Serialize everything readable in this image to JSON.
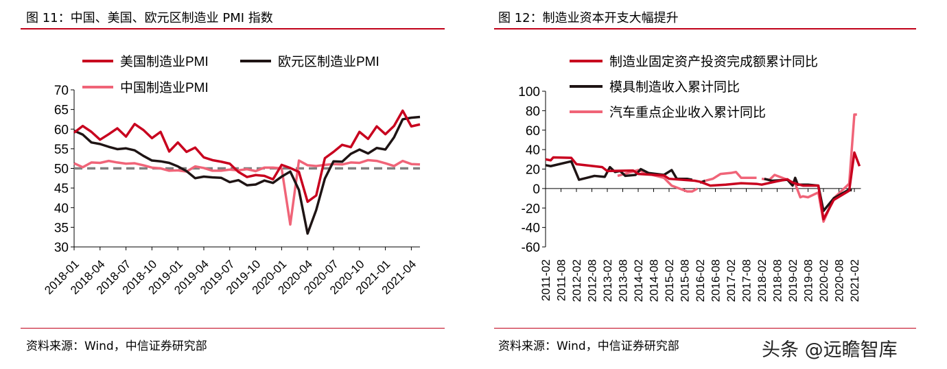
{
  "left": {
    "title": "图 11：中国、美国、欧元区制造业 PMI 指数",
    "source": "资料来源：Wind，中信证券研究部"
  },
  "right": {
    "title": "图 12：制造业资本开支大幅提升",
    "source": "资料来源：Wind，中信证券研究部"
  },
  "watermark": "头条 @远瞻智库",
  "chart_data": [
    {
      "type": "line",
      "ylim": [
        30,
        70
      ],
      "yticks": [
        30,
        35,
        40,
        45,
        50,
        55,
        60,
        65,
        70
      ],
      "x_start": "2018-01",
      "xticks": [
        "2018-01",
        "2018-04",
        "2018-07",
        "2018-10",
        "2019-01",
        "2019-04",
        "2019-07",
        "2019-10",
        "2020-01",
        "2020-04",
        "2020-07",
        "2020-10",
        "2021-01",
        "2021-04"
      ],
      "reference_line": {
        "y": 50,
        "style": "dashed",
        "color": "#808080"
      },
      "legend_placement": "top",
      "series": [
        {
          "name": "美国制造业PMI",
          "color": "#c8001e",
          "values": [
            59.1,
            60.8,
            59.3,
            57.3,
            58.7,
            60.2,
            58.1,
            61.3,
            59.8,
            57.7,
            59.3,
            54.3,
            56.6,
            54.2,
            55.3,
            52.8,
            52.1,
            51.7,
            51.2,
            49.1,
            47.8,
            48.3,
            48.1,
            47.2,
            50.9,
            50.1,
            49.1,
            41.5,
            43.1,
            52.6,
            54.2,
            56.0,
            55.4,
            59.3,
            57.5,
            60.7,
            58.7,
            60.8,
            64.7,
            60.7,
            61.2
          ]
        },
        {
          "name": "欧元区制造业PMI",
          "color": "#1e1414",
          "values": [
            59.6,
            58.6,
            56.6,
            56.2,
            55.5,
            54.9,
            55.1,
            54.6,
            53.2,
            52.0,
            51.8,
            51.4,
            50.5,
            49.3,
            47.5,
            47.9,
            47.7,
            47.6,
            46.5,
            47.0,
            45.7,
            45.9,
            46.9,
            46.3,
            47.9,
            49.2,
            44.5,
            33.4,
            39.4,
            47.4,
            51.8,
            51.7,
            53.7,
            54.8,
            53.8,
            55.2,
            54.8,
            57.9,
            62.5,
            62.9,
            63.1
          ]
        },
        {
          "name": "中国制造业PMI",
          "color": "#f06478",
          "values": [
            51.3,
            50.3,
            51.5,
            51.4,
            51.9,
            51.5,
            51.2,
            51.3,
            50.8,
            50.2,
            50.0,
            49.4,
            49.5,
            49.2,
            50.5,
            50.1,
            49.4,
            49.4,
            49.7,
            49.5,
            49.8,
            49.3,
            50.2,
            50.2,
            50.0,
            35.7,
            52.0,
            50.8,
            50.6,
            50.9,
            51.1,
            51.0,
            51.5,
            51.4,
            52.1,
            51.9,
            51.3,
            50.6,
            51.9,
            51.1,
            51.0
          ]
        }
      ]
    },
    {
      "type": "line",
      "ylim": [
        -60,
        100
      ],
      "yticks": [
        -60,
        -40,
        -20,
        0,
        20,
        40,
        60,
        80,
        100
      ],
      "xticks": [
        "2011-02",
        "2011-08",
        "2012-02",
        "2012-08",
        "2013-02",
        "2013-08",
        "2014-02",
        "2014-08",
        "2015-02",
        "2015-08",
        "2016-02",
        "2016-08",
        "2017-02",
        "2017-08",
        "2018-02",
        "2018-08",
        "2019-02",
        "2019-08",
        "2020-02",
        "2020-08",
        "2021-02"
      ],
      "legend_placement": "top-left",
      "series": [
        {
          "name": "制造业固定资产投资完成额累计同比",
          "color": "#c8001e",
          "points": [
            [
              "2011-02",
              30
            ],
            [
              "2011-04",
              29
            ],
            [
              "2011-05",
              32
            ],
            [
              "2011-12",
              31.5
            ],
            [
              "2012-02",
              25
            ],
            [
              "2012-12",
              22
            ],
            [
              "2013-02",
              18
            ],
            [
              "2013-12",
              18.5
            ],
            [
              "2014-02",
              15
            ],
            [
              "2014-12",
              13.5
            ],
            [
              "2015-02",
              10
            ],
            [
              "2015-12",
              8
            ],
            [
              "2016-02",
              7
            ],
            [
              "2016-06",
              3
            ],
            [
              "2016-12",
              4
            ],
            [
              "2017-06",
              5.5
            ],
            [
              "2017-12",
              4.8
            ],
            [
              "2018-02",
              4
            ],
            [
              "2018-08",
              7.5
            ],
            [
              "2018-12",
              9.5
            ],
            [
              "2019-02",
              6
            ],
            [
              "2019-06",
              3
            ],
            [
              "2019-12",
              3
            ],
            [
              "2020-02",
              -31.5
            ],
            [
              "2020-06",
              -11.7
            ],
            [
              "2020-12",
              -2.2
            ],
            [
              "2021-02",
              37
            ],
            [
              "2021-04",
              23
            ]
          ]
        },
        {
          "name": "模具制造收入累计同比",
          "color": "#1e1414",
          "points": [
            [
              "2011-02",
              24
            ],
            [
              "2011-04",
              23
            ],
            [
              "2011-12",
              28
            ],
            [
              "2012-03",
              9
            ],
            [
              "2012-06",
              11
            ],
            [
              "2012-09",
              13
            ],
            [
              "2013-01",
              12
            ],
            [
              "2013-03",
              22
            ],
            [
              "2013-05",
              17
            ],
            [
              "2013-07",
              18
            ],
            [
              "2013-09",
              13
            ],
            [
              "2014-01",
              14
            ],
            [
              "2014-03",
              20
            ],
            [
              "2014-06",
              16
            ],
            [
              "2014-12",
              14
            ],
            [
              "2015-03",
              19
            ],
            [
              "2015-05",
              10
            ],
            [
              "2015-09",
              10
            ],
            [
              "2015-11",
              9
            ],
            null,
            [
              "2016-02",
              6
            ],
            [
              "2016-04",
              8
            ],
            null,
            [
              "2018-03",
              10
            ],
            [
              "2018-06",
              8
            ],
            [
              "2018-12",
              9
            ],
            [
              "2019-02",
              3
            ],
            [
              "2019-03",
              11
            ],
            [
              "2019-04",
              4
            ],
            [
              "2019-08",
              4
            ],
            [
              "2019-12",
              3
            ],
            [
              "2020-02",
              -23
            ],
            [
              "2020-06",
              -10
            ],
            [
              "2020-12",
              -1
            ],
            [
              "2021-01",
              -2
            ]
          ]
        },
        {
          "name": "汽车重点企业收入累计同比",
          "color": "#f06478",
          "points": [
            [
              "2013-06",
              13
            ],
            [
              "2013-10",
              16
            ],
            [
              "2014-02",
              19
            ],
            [
              "2014-06",
              15
            ],
            [
              "2014-12",
              11
            ],
            [
              "2015-03",
              3
            ],
            [
              "2015-06",
              0
            ],
            [
              "2015-09",
              -3
            ],
            [
              "2015-11",
              -3
            ],
            [
              "2016-01",
              0
            ],
            null,
            [
              "2016-04",
              8
            ],
            [
              "2016-07",
              10
            ],
            [
              "2016-10",
              15
            ],
            [
              "2017-02",
              16
            ],
            [
              "2017-04",
              17
            ],
            [
              "2017-06",
              11
            ],
            [
              "2017-12",
              11
            ],
            null,
            [
              "2018-02",
              10
            ],
            [
              "2018-05",
              9
            ],
            [
              "2018-07",
              14
            ],
            [
              "2018-12",
              9
            ],
            [
              "2019-03",
              5
            ],
            [
              "2019-05",
              -9
            ],
            [
              "2019-06",
              -8
            ],
            [
              "2019-08",
              -9
            ],
            [
              "2019-12",
              -4
            ],
            [
              "2020-02",
              -34
            ],
            [
              "2020-06",
              -10
            ],
            [
              "2020-12",
              5
            ],
            [
              "2021-02",
              76
            ],
            [
              "2021-03",
              76
            ]
          ]
        }
      ]
    }
  ]
}
